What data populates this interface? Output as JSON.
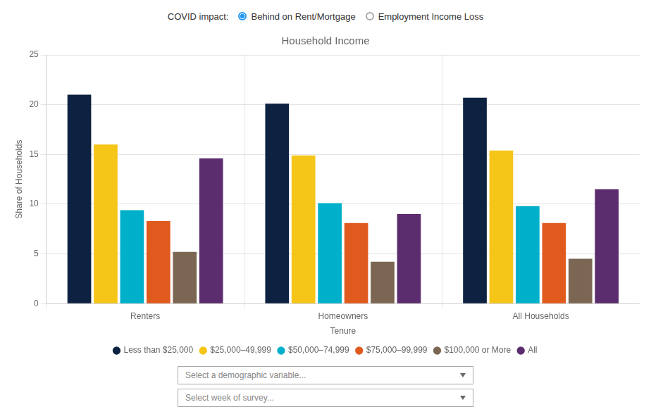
{
  "chart_data": {
    "type": "bar",
    "title": "Household Income",
    "xlabel": "Tenure",
    "ylabel": "Share of Households",
    "annotations": [
      "COVID impact:",
      "Behind on Rent/Mortgage",
      "Employment Income Loss",
      "Select a demographic variable...",
      "Select week of survey..."
    ],
    "categories": [
      "Renters",
      "Homeowners",
      "All Households"
    ],
    "series": [
      {
        "name": "Less than $25,000",
        "color": "#0d2240",
        "values": [
          21.0,
          20.1,
          20.7
        ]
      },
      {
        "name": "$25,000–49,999",
        "color": "#f5c518",
        "values": [
          16.0,
          14.9,
          15.4
        ]
      },
      {
        "name": "$50,000–74,999",
        "color": "#00b0ca",
        "values": [
          9.4,
          10.1,
          9.8
        ]
      },
      {
        "name": "$75,000–99,999",
        "color": "#e05a1e",
        "values": [
          8.3,
          8.1,
          8.1
        ]
      },
      {
        "name": "$100,000 or More",
        "color": "#7a6652",
        "values": [
          5.2,
          4.2,
          4.5
        ]
      },
      {
        "name": "All",
        "color": "#5c2d6e",
        "values": [
          14.6,
          9.0,
          11.5
        ]
      }
    ],
    "ylim": [
      0,
      25
    ],
    "yticks": [
      0,
      5,
      10,
      15,
      20,
      25
    ],
    "grid": true,
    "legend": "bottom"
  }
}
